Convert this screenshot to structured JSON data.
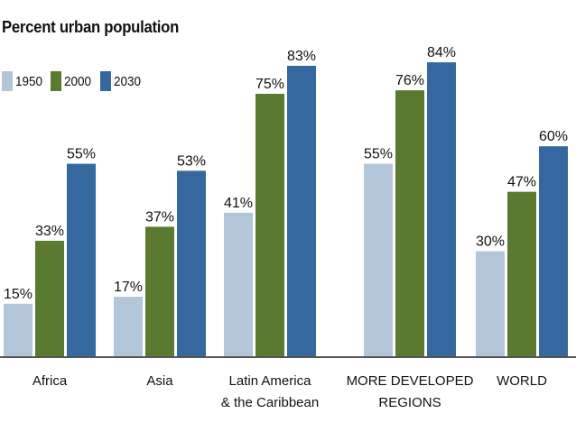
{
  "chart_data": {
    "type": "bar",
    "title": "Percent urban population",
    "categories": [
      [
        "Africa"
      ],
      [
        "Asia"
      ],
      [
        "Latin America",
        "& the Caribbean"
      ],
      [
        "MORE DEVELOPED",
        "REGIONS"
      ],
      [
        "WORLD"
      ]
    ],
    "series": [
      {
        "name": "1950",
        "color": "#b3c5d9",
        "values": [
          15,
          17,
          41,
          55,
          30
        ]
      },
      {
        "name": "2000",
        "color": "#5a7a30",
        "values": [
          33,
          37,
          75,
          76,
          47
        ]
      },
      {
        "name": "2030",
        "color": "#35689e",
        "values": [
          55,
          53,
          83,
          84,
          60
        ]
      }
    ],
    "value_suffix": "%",
    "ylim": [
      0,
      100
    ],
    "xlabel": "",
    "ylabel": "",
    "legend_position": "top-left",
    "grid": false
  }
}
